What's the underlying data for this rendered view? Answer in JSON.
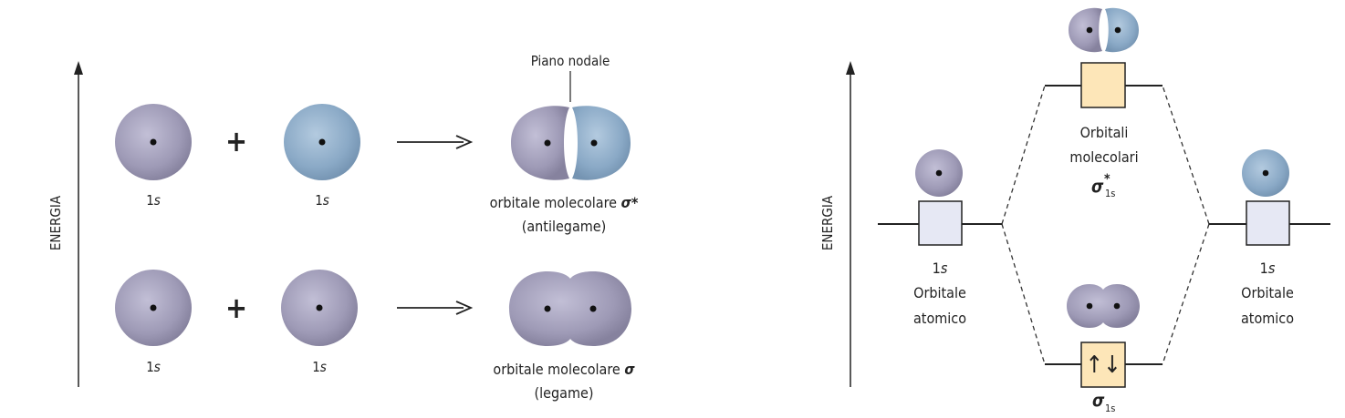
{
  "left_panel": {
    "energy_axis_label": "ENERGIA",
    "nodal_plane_label": "Piano nodale",
    "top_row": {
      "left_orbital_label": "1",
      "right_orbital_label": "1",
      "orbital_suffix": "s",
      "plus": "+",
      "result_label": "orbitale molecolare",
      "result_symbol": "σ*",
      "result_sub": "(antilegame)"
    },
    "bottom_row": {
      "left_orbital_label": "1",
      "right_orbital_label": "1",
      "orbital_suffix": "s",
      "plus": "+",
      "result_label": "orbitale molecolare",
      "result_symbol": "σ",
      "result_sub": "(legame)"
    }
  },
  "right_panel": {
    "energy_axis_label": "ENERGIA",
    "mo_label_line1": "Orbitali",
    "mo_label_line2": "molecolari",
    "antibonding_symbol": "σ",
    "antibonding_sup": "*",
    "antibonding_sub": "1s",
    "bonding_symbol": "σ",
    "bonding_sub": "1s",
    "bonding_electrons": "↑↓",
    "left_atom": {
      "line1": "1",
      "suffix": "s",
      "line2": "Orbitale",
      "line3": "atomico"
    },
    "right_atom": {
      "line1": "1",
      "suffix": "s",
      "line2": "Orbitale",
      "line3": "atomico"
    }
  },
  "colors": {
    "purple_orbital": "#9a96b2",
    "blue_orbital": "#86a7c4",
    "mo_box_fill": "#fde6b8",
    "ao_box_fill": "#e6e8f4"
  }
}
